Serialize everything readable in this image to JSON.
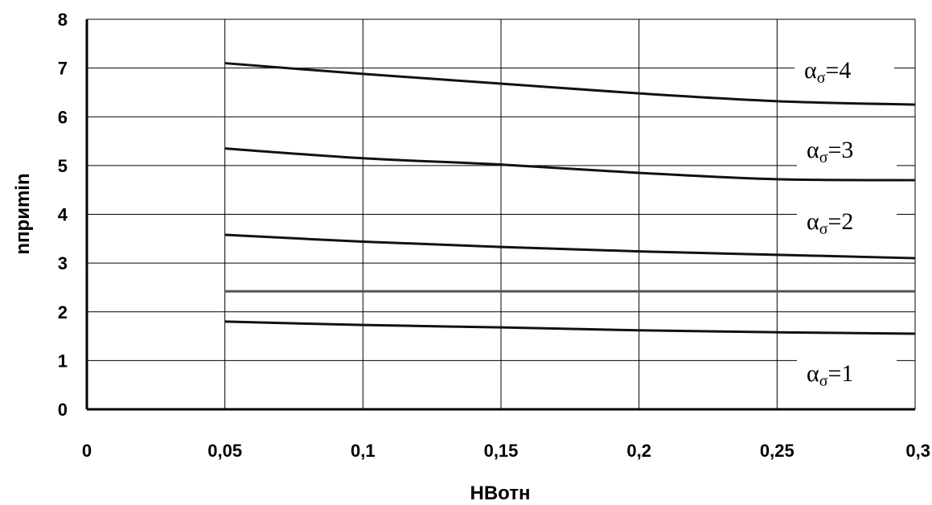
{
  "chart_data": {
    "type": "line",
    "title": "",
    "xlabel": "HBотн",
    "ylabel": "nприmin",
    "xlim": [
      0,
      0.3
    ],
    "ylim": [
      0,
      8
    ],
    "grid": true,
    "x_ticks": [
      {
        "value": 0,
        "label": "0"
      },
      {
        "value": 0.05,
        "label": "0,05"
      },
      {
        "value": 0.1,
        "label": "0,1"
      },
      {
        "value": 0.15,
        "label": "0,15"
      },
      {
        "value": 0.2,
        "label": "0,2"
      },
      {
        "value": 0.25,
        "label": "0,25"
      },
      {
        "value": 0.3,
        "label": "0,3"
      }
    ],
    "y_ticks": [
      {
        "value": 0,
        "label": "0"
      },
      {
        "value": 1,
        "label": "1"
      },
      {
        "value": 2,
        "label": "2"
      },
      {
        "value": 3,
        "label": "3"
      },
      {
        "value": 4,
        "label": "4"
      },
      {
        "value": 5,
        "label": "5"
      },
      {
        "value": 6,
        "label": "6"
      },
      {
        "value": 7,
        "label": "7"
      },
      {
        "value": 8,
        "label": "8"
      }
    ],
    "x": [
      0.05,
      0.1,
      0.15,
      0.2,
      0.25,
      0.3
    ],
    "series": [
      {
        "label_base": "α",
        "label_sub": "σ",
        "label_tail": "=4",
        "values": [
          7.1,
          6.88,
          6.68,
          6.48,
          6.32,
          6.25
        ],
        "color": "#111111"
      },
      {
        "label_base": "α",
        "label_sub": "σ",
        "label_tail": "=3",
        "values": [
          5.35,
          5.15,
          5.02,
          4.85,
          4.72,
          4.7
        ],
        "color": "#111111"
      },
      {
        "label_base": "α",
        "label_sub": "σ",
        "label_tail": "=2",
        "values": [
          3.58,
          3.44,
          3.33,
          3.24,
          3.17,
          3.1
        ],
        "color": "#111111"
      },
      {
        "values": [
          2.42,
          2.42,
          2.42,
          2.42,
          2.42,
          2.42
        ],
        "color": "#555555"
      },
      {
        "label_base": "α",
        "label_sub": "σ",
        "label_tail": "=1",
        "values": [
          1.8,
          1.73,
          1.68,
          1.62,
          1.58,
          1.55
        ],
        "color": "#111111"
      }
    ]
  }
}
